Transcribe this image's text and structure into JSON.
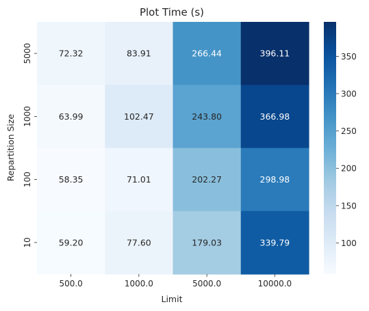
{
  "chart_data": {
    "type": "heatmap",
    "title": "Plot Time (s)",
    "xlabel": "Limit",
    "ylabel": "Repartition Size",
    "x_categories": [
      "500.0",
      "1000.0",
      "5000.0",
      "10000.0"
    ],
    "y_categories": [
      "5000",
      "1000",
      "100",
      "10"
    ],
    "values": [
      [
        72.32,
        83.91,
        266.44,
        396.11
      ],
      [
        63.99,
        102.47,
        243.8,
        366.98
      ],
      [
        58.35,
        71.01,
        202.27,
        298.98
      ],
      [
        59.2,
        77.6,
        179.03,
        339.79
      ]
    ],
    "value_labels": [
      [
        "72.32",
        "83.91",
        "266.44",
        "396.11"
      ],
      [
        "63.99",
        "102.47",
        "243.80",
        "366.98"
      ],
      [
        "58.35",
        "71.01",
        "202.27",
        "298.98"
      ],
      [
        "59.20",
        "77.60",
        "179.03",
        "339.79"
      ]
    ],
    "colorscale": "Blues",
    "vmin": 58.35,
    "vmax": 396.11,
    "colorbar_ticks": [
      "100",
      "150",
      "200",
      "250",
      "300",
      "350"
    ],
    "grid": false
  }
}
